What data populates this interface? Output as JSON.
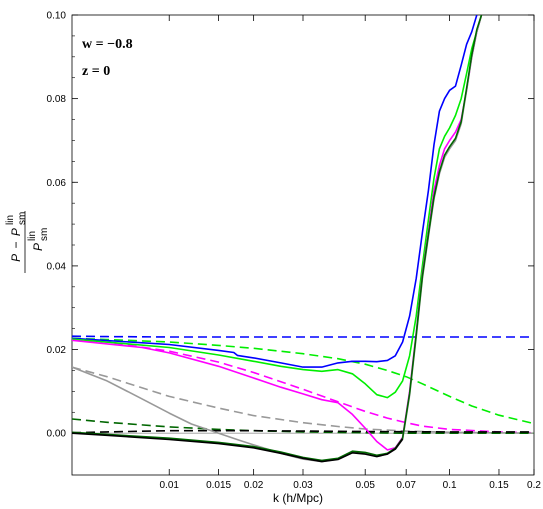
{
  "chart_data": {
    "type": "line",
    "xlabel": "k (h/Mpc)",
    "ylabel": {
      "base": "P",
      "minus": "−",
      "sup": "lin",
      "sub": "sm"
    },
    "annotations": {
      "w": "w = −0.8",
      "z": "z = 0"
    },
    "x_scale": "log",
    "xlim": [
      0.0045,
      0.2
    ],
    "ylim": [
      -0.01,
      0.1
    ],
    "x_ticks": [
      {
        "value": 0.01,
        "label": "0.01"
      },
      {
        "value": 0.015,
        "label": "0.015"
      },
      {
        "value": 0.02,
        "label": "0.02"
      },
      {
        "value": 0.03,
        "label": "0.03"
      },
      {
        "value": 0.05,
        "label": "0.05"
      },
      {
        "value": 0.07,
        "label": "0.07"
      },
      {
        "value": 0.1,
        "label": "0.1"
      },
      {
        "value": 0.15,
        "label": "0.15"
      },
      {
        "value": 0.2,
        "label": "0.2"
      }
    ],
    "y_ticks": [
      {
        "value": 0.0,
        "label": "0.00"
      },
      {
        "value": 0.02,
        "label": "0.02"
      },
      {
        "value": 0.04,
        "label": "0.04"
      },
      {
        "value": 0.06,
        "label": "0.06"
      },
      {
        "value": 0.08,
        "label": "0.08"
      },
      {
        "value": 0.1,
        "label": "0.10"
      }
    ],
    "grid": false,
    "zero_line": true,
    "series": [
      {
        "color": "#0000ff",
        "style": "dashed",
        "x": [
          0.0045,
          0.006,
          0.01,
          0.02,
          0.05,
          0.1,
          0.2
        ],
        "y": [
          0.0232,
          0.0231,
          0.023,
          0.023,
          0.023,
          0.023,
          0.023
        ]
      },
      {
        "color": "#00ee00",
        "style": "dashed",
        "x": [
          0.0045,
          0.006,
          0.01,
          0.015,
          0.02,
          0.03,
          0.04,
          0.05,
          0.06,
          0.07,
          0.08,
          0.1,
          0.12,
          0.15,
          0.2
        ],
        "y": [
          0.0227,
          0.0224,
          0.0218,
          0.021,
          0.0203,
          0.019,
          0.0178,
          0.0165,
          0.015,
          0.0135,
          0.0118,
          0.0088,
          0.0065,
          0.0043,
          0.0023
        ]
      },
      {
        "color": "#ff00ff",
        "style": "dashed",
        "x": [
          0.0045,
          0.006,
          0.01,
          0.015,
          0.02,
          0.03,
          0.04,
          0.05,
          0.06,
          0.07,
          0.08,
          0.1,
          0.15,
          0.2
        ],
        "y": [
          0.0224,
          0.0218,
          0.0196,
          0.017,
          0.0145,
          0.0105,
          0.0075,
          0.0052,
          0.0036,
          0.0025,
          0.0017,
          0.0009,
          0.0003,
          0.0001
        ]
      },
      {
        "color": "#999999",
        "style": "dashed",
        "x": [
          0.0045,
          0.006,
          0.01,
          0.015,
          0.02,
          0.03,
          0.04,
          0.05,
          0.07,
          0.1,
          0.2
        ],
        "y": [
          0.0158,
          0.0135,
          0.0088,
          0.006,
          0.0042,
          0.0025,
          0.0016,
          0.001,
          0.0005,
          0.0002,
          0.0
        ]
      },
      {
        "color": "#006600",
        "style": "dashed",
        "x": [
          0.0045,
          0.006,
          0.01,
          0.015,
          0.02,
          0.03,
          0.05,
          0.07,
          0.1,
          0.2
        ],
        "y": [
          0.0034,
          0.0026,
          0.0015,
          0.0009,
          0.0006,
          0.0003,
          0.0001,
          0.0,
          0.0,
          0.0
        ]
      },
      {
        "color": "#000000",
        "style": "dashed",
        "x": [
          0.0045,
          0.006,
          0.01,
          0.02,
          0.05,
          0.1,
          0.2
        ],
        "y": [
          0.0001,
          0.0003,
          0.0006,
          0.0006,
          0.0004,
          0.0003,
          0.0003
        ]
      },
      {
        "color": "#0000ff",
        "style": "solid",
        "x": [
          0.0045,
          0.01,
          0.015,
          0.017,
          0.0175,
          0.02,
          0.025,
          0.03,
          0.035,
          0.04,
          0.045,
          0.05,
          0.055,
          0.06,
          0.064,
          0.068,
          0.072,
          0.076,
          0.08,
          0.084,
          0.088,
          0.092,
          0.096,
          0.1,
          0.105,
          0.11,
          0.115,
          0.12,
          0.125
        ],
        "y": [
          0.0227,
          0.0212,
          0.0198,
          0.0193,
          0.0186,
          0.018,
          0.0168,
          0.0158,
          0.0158,
          0.0168,
          0.0172,
          0.0172,
          0.0171,
          0.0174,
          0.0185,
          0.0218,
          0.028,
          0.037,
          0.048,
          0.058,
          0.069,
          0.077,
          0.08,
          0.082,
          0.083,
          0.088,
          0.093,
          0.096,
          0.1
        ]
      },
      {
        "color": "#00ee00",
        "style": "solid",
        "x": [
          0.0045,
          0.01,
          0.015,
          0.02,
          0.025,
          0.03,
          0.035,
          0.04,
          0.045,
          0.05,
          0.055,
          0.06,
          0.064,
          0.068,
          0.072,
          0.076,
          0.08,
          0.084,
          0.088,
          0.092,
          0.096,
          0.1,
          0.105,
          0.11,
          0.115,
          0.12,
          0.125,
          0.13
        ],
        "y": [
          0.0225,
          0.0205,
          0.0187,
          0.0172,
          0.016,
          0.0152,
          0.0148,
          0.0152,
          0.0142,
          0.0118,
          0.0092,
          0.0085,
          0.0098,
          0.0125,
          0.0185,
          0.028,
          0.04,
          0.051,
          0.061,
          0.068,
          0.071,
          0.073,
          0.076,
          0.08,
          0.086,
          0.092,
          0.096,
          0.1
        ]
      },
      {
        "color": "#ff00ff",
        "style": "solid",
        "x": [
          0.0045,
          0.008,
          0.01,
          0.015,
          0.02,
          0.025,
          0.03,
          0.035,
          0.04,
          0.045,
          0.05,
          0.055,
          0.06,
          0.064,
          0.068,
          0.072,
          0.076,
          0.08,
          0.084,
          0.088,
          0.092,
          0.096,
          0.1,
          0.105,
          0.11,
          0.115,
          0.12,
          0.125,
          0.13
        ],
        "y": [
          0.0222,
          0.0205,
          0.0192,
          0.016,
          0.0132,
          0.011,
          0.0094,
          0.008,
          0.0073,
          0.0045,
          0.0012,
          -0.002,
          -0.004,
          -0.0035,
          -0.001,
          0.01,
          0.024,
          0.038,
          0.048,
          0.058,
          0.064,
          0.068,
          0.07,
          0.072,
          0.075,
          0.082,
          0.09,
          0.096,
          0.1
        ]
      },
      {
        "color": "#999999",
        "style": "solid",
        "x": [
          0.0045,
          0.006,
          0.008,
          0.01,
          0.012,
          0.015,
          0.018,
          0.02,
          0.025,
          0.03,
          0.035,
          0.04,
          0.045,
          0.05,
          0.055,
          0.06,
          0.064,
          0.068,
          0.072,
          0.076,
          0.08,
          0.084,
          0.088,
          0.092,
          0.096,
          0.1,
          0.105,
          0.11,
          0.115,
          0.12,
          0.125,
          0.13
        ],
        "y": [
          0.0158,
          0.0125,
          0.0082,
          0.0048,
          0.0022,
          0.0,
          -0.0018,
          -0.0028,
          -0.0048,
          -0.0062,
          -0.0068,
          -0.0062,
          -0.0045,
          -0.0048,
          -0.0055,
          -0.005,
          -0.0038,
          -0.0015,
          0.009,
          0.023,
          0.037,
          0.047,
          0.056,
          0.062,
          0.066,
          0.068,
          0.07,
          0.074,
          0.082,
          0.09,
          0.096,
          0.1
        ]
      },
      {
        "color": "#006600",
        "style": "solid",
        "x": [
          0.0045,
          0.006,
          0.01,
          0.015,
          0.02,
          0.025,
          0.03,
          0.035,
          0.04,
          0.045,
          0.05,
          0.055,
          0.06,
          0.064,
          0.068,
          0.072,
          0.076,
          0.08,
          0.084,
          0.088,
          0.092,
          0.096,
          0.1,
          0.105,
          0.11,
          0.115,
          0.12,
          0.125,
          0.13
        ],
        "y": [
          0.0002,
          -0.0003,
          -0.0012,
          -0.0022,
          -0.0032,
          -0.0045,
          -0.0058,
          -0.0065,
          -0.006,
          -0.0043,
          -0.0046,
          -0.0053,
          -0.0048,
          -0.0036,
          -0.0012,
          0.0095,
          0.0235,
          0.0375,
          0.0475,
          0.0565,
          0.0625,
          0.0665,
          0.0685,
          0.0705,
          0.0745,
          0.0825,
          0.0905,
          0.0965,
          0.1
        ]
      },
      {
        "color": "#000000",
        "style": "solid",
        "x": [
          0.0045,
          0.006,
          0.01,
          0.015,
          0.02,
          0.025,
          0.03,
          0.035,
          0.04,
          0.045,
          0.05,
          0.055,
          0.06,
          0.064,
          0.068
        ],
        "y": [
          0.0,
          -0.0005,
          -0.0015,
          -0.0025,
          -0.0035,
          -0.0048,
          -0.006,
          -0.0068,
          -0.0063,
          -0.0047,
          -0.005,
          -0.0056,
          -0.005,
          -0.0038,
          -0.0014
        ]
      }
    ]
  }
}
